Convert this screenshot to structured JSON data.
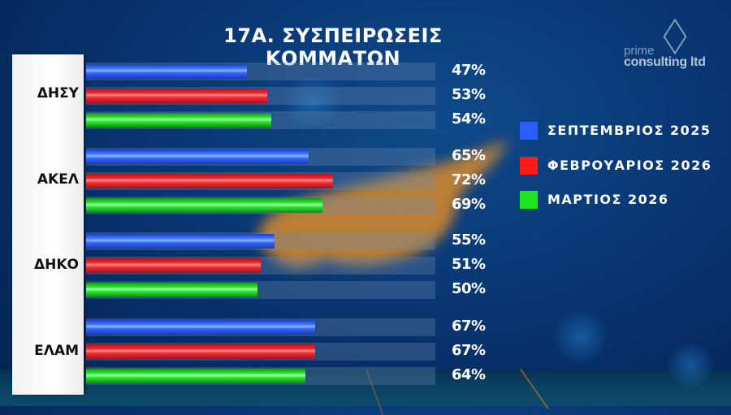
{
  "title": "17Α. ΣΥΣΠΕΙΡΩΣΕΙΣ ΚΟΜΜΑΤΩΝ",
  "logo": {
    "line1": "prime",
    "line2": "consulting ltd"
  },
  "legend": [
    {
      "label": "ΣΕΠΤΕΜΒΡΙΟΣ 2025",
      "color": "#2a5cff"
    },
    {
      "label": "ΦΕΒΡΟΥΑΡΙΟΣ 2026",
      "color": "#ff1a1a"
    },
    {
      "label": "ΜΑΡΤΙΟΣ 2026",
      "color": "#1ee61e"
    }
  ],
  "parties": [
    {
      "name": "ΔΗΣΥ",
      "values": [
        {
          "v": 47,
          "label": "47%"
        },
        {
          "v": 53,
          "label": "53%"
        },
        {
          "v": 54,
          "label": "54%"
        }
      ]
    },
    {
      "name": "ΑΚΕΛ",
      "values": [
        {
          "v": 65,
          "label": "65%"
        },
        {
          "v": 72,
          "label": "72%"
        },
        {
          "v": 69,
          "label": "69%"
        }
      ]
    },
    {
      "name": "ΔΗΚΟ",
      "values": [
        {
          "v": 55,
          "label": "55%"
        },
        {
          "v": 51,
          "label": "51%"
        },
        {
          "v": 50,
          "label": "50%"
        }
      ]
    },
    {
      "name": "ΕΛΑΜ",
      "values": [
        {
          "v": 67,
          "label": "67%"
        },
        {
          "v": 67,
          "label": "67%"
        },
        {
          "v": 64,
          "label": "64%"
        }
      ]
    }
  ],
  "chart_data": {
    "type": "bar",
    "orientation": "horizontal",
    "title": "17Α. ΣΥΣΠΕΙΡΩΣΕΙΣ ΚΟΜΜΑΤΩΝ",
    "categories": [
      "ΔΗΣΥ",
      "ΑΚΕΛ",
      "ΔΗΚΟ",
      "ΕΛΑΜ"
    ],
    "series": [
      {
        "name": "ΣΕΠΤΕΜΒΡΙΟΣ 2025",
        "color": "#2a5cff",
        "values": [
          47,
          65,
          55,
          67
        ]
      },
      {
        "name": "ΦΕΒΡΟΥΑΡΙΟΣ 2026",
        "color": "#ff1a1a",
        "values": [
          53,
          72,
          51,
          67
        ]
      },
      {
        "name": "ΜΑΡΤΙΟΣ 2026",
        "color": "#1ee61e",
        "values": [
          54,
          69,
          50,
          64
        ]
      }
    ],
    "xlabel": "",
    "ylabel": "",
    "value_suffix": "%",
    "xlim": [
      0,
      100
    ],
    "grid": false,
    "legend_position": "right",
    "data_labels": true
  }
}
